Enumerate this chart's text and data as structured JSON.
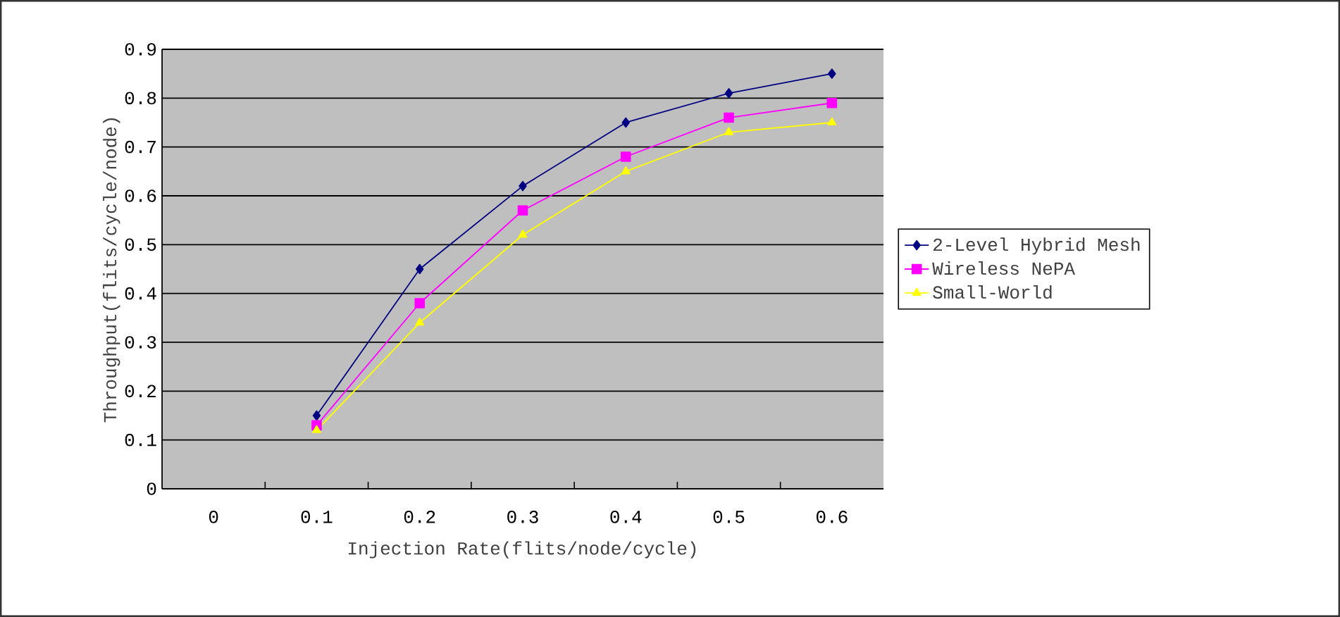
{
  "chart_data": {
    "type": "line",
    "xlabel": "Injection Rate(flits/node/cycle)",
    "ylabel": "Throughput(flits/cycle/node)",
    "categories": [
      "0",
      "0.1",
      "0.2",
      "0.3",
      "0.4",
      "0.5",
      "0.6"
    ],
    "series": [
      {
        "name": "2-Level Hybrid Mesh",
        "color": "#000080",
        "marker": "diamond",
        "values": [
          null,
          0.15,
          0.45,
          0.62,
          0.75,
          0.81,
          0.85
        ]
      },
      {
        "name": "Wireless NePA",
        "color": "#ff00ff",
        "marker": "square",
        "values": [
          null,
          0.13,
          0.38,
          0.57,
          0.68,
          0.76,
          0.79
        ]
      },
      {
        "name": "Small-World",
        "color": "#ffff00",
        "marker": "triangle",
        "values": [
          null,
          0.12,
          0.34,
          0.52,
          0.65,
          0.73,
          0.75
        ]
      }
    ],
    "ylim": [
      0,
      0.9
    ],
    "yticks": [
      0,
      0.1,
      0.2,
      0.3,
      0.4,
      0.5,
      0.6,
      0.7,
      0.8,
      0.9
    ],
    "grid": "y",
    "legend": "right",
    "line_style": "solid"
  }
}
